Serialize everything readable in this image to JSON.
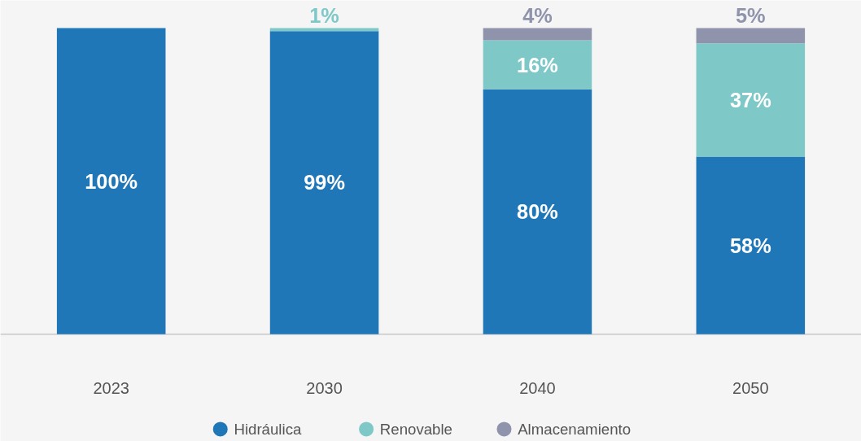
{
  "chart_data": {
    "type": "bar",
    "stacked": true,
    "categories": [
      "2023",
      "2030",
      "2040",
      "2050"
    ],
    "series": [
      {
        "name": "Hidráulica",
        "color": "#1f77b8",
        "values": [
          100,
          99,
          80,
          58
        ],
        "value_labels": [
          "100%",
          "99%",
          "80%",
          "58%"
        ]
      },
      {
        "name": "Renovable",
        "color": "#7ec8c8",
        "values": [
          null,
          1,
          16,
          37
        ],
        "value_labels": [
          null,
          "1%",
          "16%",
          "37%"
        ]
      },
      {
        "name": "Almacenamiento",
        "color": "#8f93ab",
        "values": [
          null,
          null,
          4,
          5
        ],
        "value_labels": [
          null,
          null,
          "4%",
          "5%"
        ]
      }
    ],
    "legend": "bottom"
  }
}
